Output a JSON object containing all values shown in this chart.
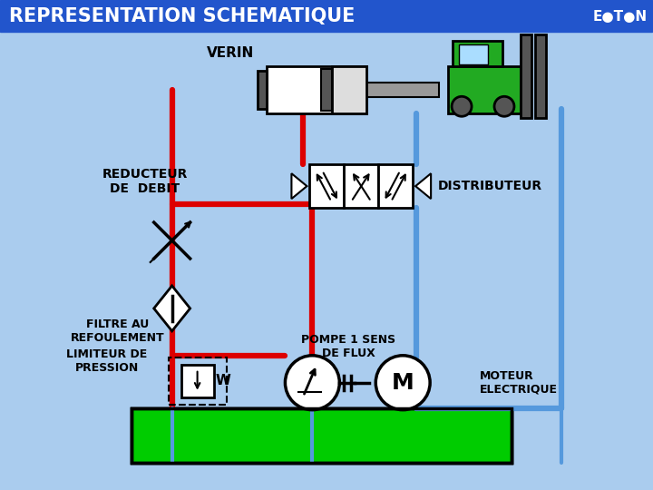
{
  "title": "REPRESENTATION SCHEMATIQUE",
  "title_color": "#FFFFFF",
  "title_bg": "#2255CC",
  "bg_color": "#AACCEE",
  "labels": {
    "verin": "VERIN",
    "reducteur": "REDUCTEUR\nDE  DEBIT",
    "distributeur": "DISTRIBUTEUR",
    "filtre": "FILTRE AU\nREFOULEMENT",
    "limiteur": "LIMITEUR DE\nPRESSION",
    "pompe": "POMPE 1 SENS\nDE FLUX",
    "moteur": "MOTEUR\nELECTRIQUE"
  },
  "red": "#DD0000",
  "blue": "#5599DD",
  "green": "#00CC00",
  "dark": "#000000",
  "white": "#FFFFFF",
  "gray": "#999999",
  "dark_gray": "#555555",
  "car_green": "#22AA22",
  "sky_blue": "#AADDFF"
}
